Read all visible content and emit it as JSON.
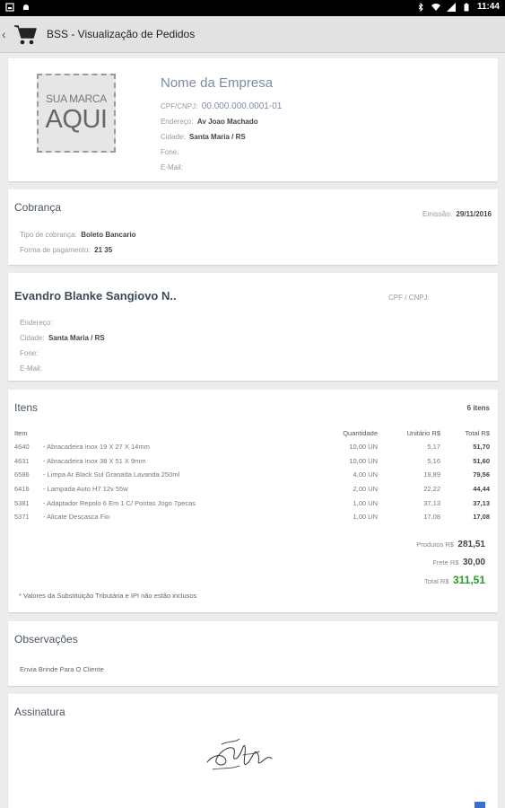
{
  "status_bar": {
    "time": "11:44"
  },
  "action_bar": {
    "title": "BSS - Visualização de Pedidos"
  },
  "company": {
    "logo_line1": "SUA MARCA",
    "logo_line2": "AQUI",
    "name": "Nome da Empresa",
    "cnpj_label": "CPF/CNPJ:",
    "cnpj_value": "00.000.000.0001-01",
    "address_label": "Endereço:",
    "address_value": "Av Joao Machado",
    "city_label": "Cidade:",
    "city_value": "Santa Maria / RS",
    "phone_label": "Fone:",
    "email_label": "E-Mail:"
  },
  "billing": {
    "title": "Cobrança",
    "emission_label": "Emissão:",
    "emission_value": "29/11/2016",
    "type_label": "Tipo de cobrança:",
    "type_value": "Boleto Bancario",
    "payment_label": "Forma de pagamento:",
    "payment_value": "21 35"
  },
  "client": {
    "name": "Evandro Blanke Sangiovo N..",
    "cpf_label": "CPF / CNPJ:",
    "address_label": "Endereço:",
    "city_label": "Cidade:",
    "city_value": "Santa Maria / RS",
    "phone_label": "Fone:",
    "email_label": "E-Mail:"
  },
  "items": {
    "title": "Itens",
    "count": "6 itens",
    "headers": {
      "item": "Item",
      "qty": "Quantidade",
      "unit": "Unitário R$",
      "total": "Total R$"
    },
    "rows": [
      {
        "code": "4640",
        "desc": "- Abracadeira Inox 19 X 27 X 14mm",
        "qty": "10,00 UN",
        "unit": "5,17",
        "total": "51,70"
      },
      {
        "code": "4631",
        "desc": "- Abracadeira Inox 38 X 51 X 9mm",
        "qty": "10,00 UN",
        "unit": "5,16",
        "total": "51,60"
      },
      {
        "code": "6586",
        "desc": "- Limpa Ar Black Sul Granada Lavanda 250ml",
        "qty": "4,00 UN",
        "unit": "19,89",
        "total": "79,56"
      },
      {
        "code": "6416",
        "desc": "- Lampada Auto H7 12v 55w",
        "qty": "2,00 UN",
        "unit": "22,22",
        "total": "44,44"
      },
      {
        "code": "5381",
        "desc": "- Adaptador Repolo 6 Em 1 C/ Pontas Jogo 7pecas",
        "qty": "1,00 UN",
        "unit": "37,13",
        "total": "37,13"
      },
      {
        "code": "5371",
        "desc": "- Alicate Descasca Fio",
        "qty": "1,00 UN",
        "unit": "17,08",
        "total": "17,08"
      }
    ],
    "products_label": "Produtos R$",
    "products_value": "281,51",
    "freight_label": "Frete R$",
    "freight_value": "30,00",
    "total_label": "Total R$",
    "total_value": "311,51",
    "note": "* Valores da Substituição Tributária e IPI não estão inclusos"
  },
  "observations": {
    "title": "Observações",
    "text": "Envia Brinde Para O Cliente"
  },
  "signature": {
    "title": "Assinatura"
  },
  "colors": {
    "accent_total": "#2a9a2a",
    "company_name": "#7d8aa6"
  }
}
